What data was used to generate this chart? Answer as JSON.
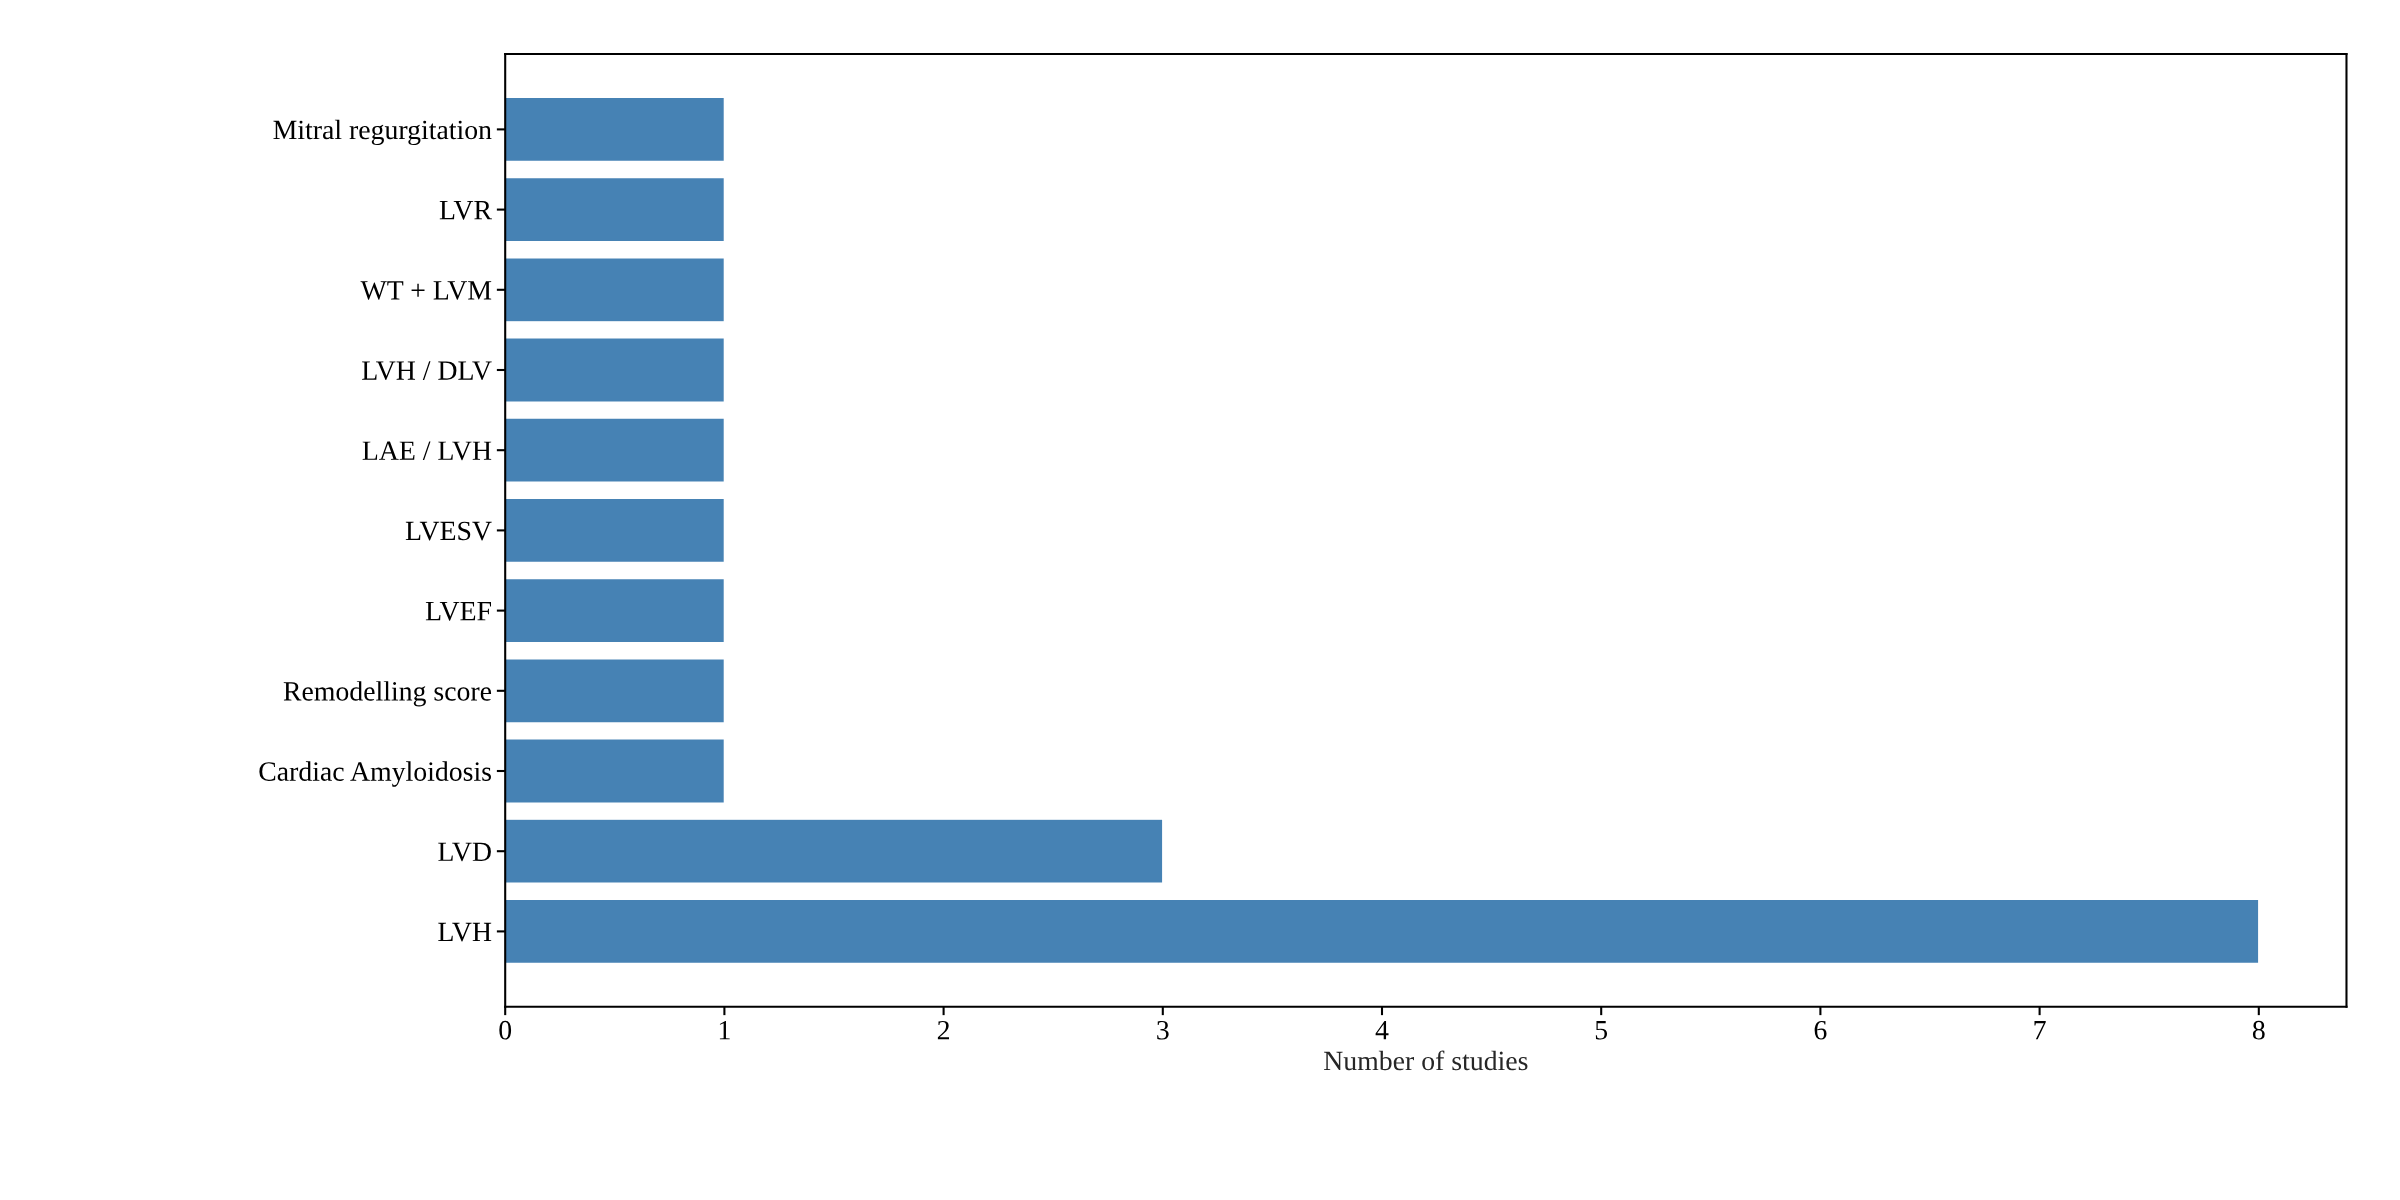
{
  "chart_data": {
    "type": "bar",
    "orientation": "horizontal",
    "xlabel": "Number of studies",
    "categories": [
      "Mitral regurgitation",
      "LVR",
      "WT + LVM",
      "LVH / DLV",
      "LAE / LVH",
      "LVESV",
      "LVEF",
      "Remodelling score",
      "Cardiac Amyloidosis",
      "LVD",
      "LVH"
    ],
    "values": [
      1,
      1,
      1,
      1,
      1,
      1,
      1,
      1,
      1,
      3,
      8
    ],
    "color": "#4682b4",
    "xlim": [
      0,
      8.4
    ],
    "xticks": [
      0,
      1,
      2,
      3,
      4,
      5,
      6,
      7,
      8
    ],
    "grid": false,
    "legend": false
  }
}
